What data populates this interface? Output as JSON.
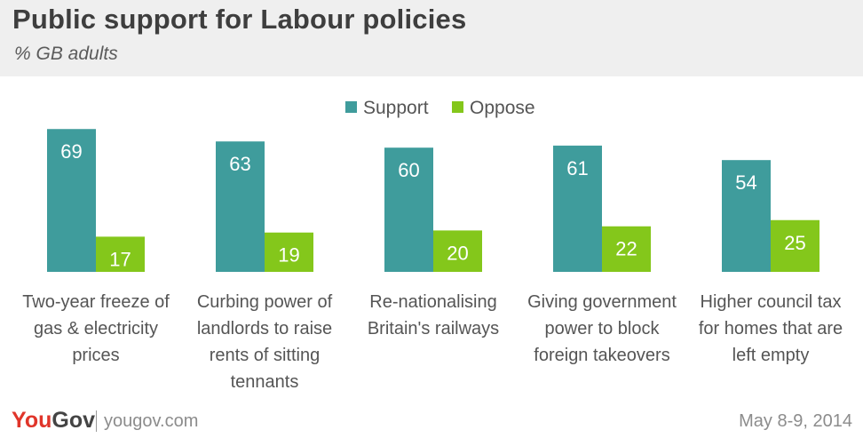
{
  "header": {
    "title": "Public support for Labour policies",
    "subtitle": "% GB adults"
  },
  "footer": {
    "logo_you": "You",
    "logo_gov": "Gov",
    "site": "yougov.com",
    "date": "May 8-9, 2014"
  },
  "colors": {
    "support": "#3f9c9c",
    "oppose": "#84c71b",
    "header_bg": "#efefef"
  },
  "chart_data": {
    "type": "bar",
    "title": "Public support for Labour policies",
    "subtitle": "% GB adults",
    "categories": [
      [
        "Two-year freeze of",
        "gas & electricity",
        "prices"
      ],
      [
        "Curbing power of",
        "landlords to raise",
        "rents of sitting",
        "tennants"
      ],
      [
        "Re-nationalising",
        "Britain's railways"
      ],
      [
        "Giving government",
        "power to block",
        "foreign takeovers"
      ],
      [
        "Higher council tax",
        "for homes that are",
        "left empty"
      ]
    ],
    "series": [
      {
        "name": "Support",
        "values": [
          69,
          63,
          60,
          61,
          54
        ],
        "color": "#3f9c9c"
      },
      {
        "name": "Oppose",
        "values": [
          17,
          19,
          20,
          22,
          25
        ],
        "color": "#84c71b"
      }
    ],
    "ylim": [
      0,
      100
    ],
    "legend": "top-center",
    "grid": false,
    "data_labels": true
  }
}
